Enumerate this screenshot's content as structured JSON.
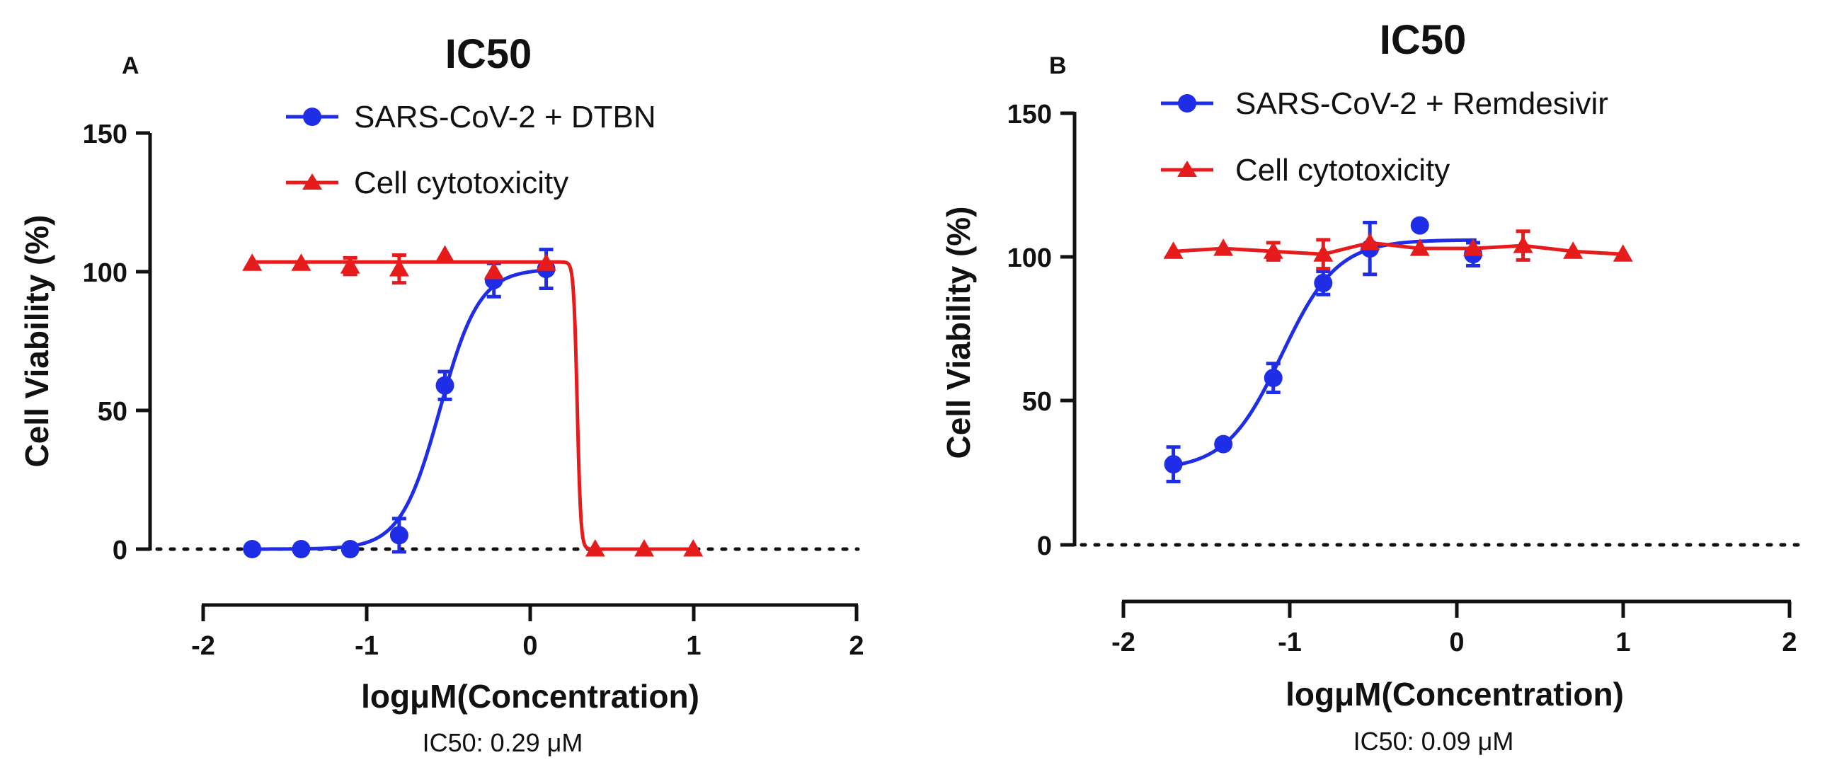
{
  "chart_data": [
    {
      "panel": "A",
      "type": "line",
      "title": "IC50",
      "xlabel": "logμM(Concentration)",
      "ylabel": "Cell Viability (%)",
      "xlim": [
        -2,
        2
      ],
      "ylim": [
        0,
        150
      ],
      "xticks": [
        "-2",
        "-1",
        "0",
        "1",
        "2"
      ],
      "yticks": [
        "0",
        "50",
        "100",
        "150"
      ],
      "baseline": 0,
      "annotation": "IC50: 0.29 μM",
      "legend_position": "top-center",
      "series": [
        {
          "name": "SARS-CoV-2 + DTBN",
          "color": "#1f2ee6",
          "marker": "circle",
          "x": [
            -1.7,
            -1.4,
            -1.1,
            -0.8,
            -0.52,
            -0.22,
            0.1
          ],
          "y": [
            0,
            0,
            0,
            5,
            59,
            97,
            101
          ],
          "err": [
            0,
            0,
            0,
            6,
            5,
            6,
            7
          ],
          "fit": {
            "kind": "sigmoid",
            "bottom": 0,
            "top": 101,
            "x50": -0.55,
            "hill": 3.6,
            "x_start": -1.7,
            "x_end": 0.12
          }
        },
        {
          "name": "Cell cytotoxicity",
          "color": "#e61c1c",
          "marker": "triangle",
          "x": [
            -1.7,
            -1.4,
            -1.1,
            -0.8,
            -0.52,
            -0.22,
            0.1,
            0.4,
            0.7,
            1.0
          ],
          "y": [
            103,
            103,
            102,
            101,
            106,
            100,
            103,
            0,
            0,
            0
          ],
          "err": [
            0,
            0,
            3,
            5,
            0,
            0,
            0,
            0,
            0,
            0
          ],
          "fit": {
            "kind": "sigmoid",
            "bottom": 0,
            "top": 103.5,
            "x50": 0.29,
            "hill": -40,
            "x_start": -1.7,
            "x_end": 1.0
          }
        }
      ]
    },
    {
      "panel": "B",
      "type": "line",
      "title": "IC50",
      "xlabel": "logμM(Concentration)",
      "ylabel": "Cell Viability (%)",
      "xlim": [
        -2,
        2
      ],
      "ylim": [
        0,
        150
      ],
      "xticks": [
        "-2",
        "-1",
        "0",
        "1",
        "2"
      ],
      "yticks": [
        "0",
        "50",
        "100",
        "150"
      ],
      "baseline": 0,
      "annotation": "IC50: 0.09 μM",
      "legend_position": "top-center",
      "series": [
        {
          "name": "SARS-CoV-2 + Remdesivir",
          "color": "#1f2ee6",
          "marker": "circle",
          "x": [
            -1.7,
            -1.4,
            -1.1,
            -0.8,
            -0.52,
            -0.22,
            0.1
          ],
          "y": [
            28,
            35,
            58,
            91,
            103,
            111,
            101
          ],
          "err": [
            6,
            0,
            5,
            4,
            9,
            0,
            4
          ],
          "fit": {
            "kind": "sigmoid",
            "bottom": 26,
            "top": 106,
            "x50": -1.05,
            "hill": 2.6,
            "x_start": -1.7,
            "x_end": 0.12
          }
        },
        {
          "name": "Cell cytotoxicity",
          "color": "#e61c1c",
          "marker": "triangle",
          "x": [
            -1.7,
            -1.4,
            -1.1,
            -0.8,
            -0.52,
            -0.22,
            0.1,
            0.4,
            0.7,
            1.0
          ],
          "y": [
            102,
            103,
            102,
            101,
            105,
            103,
            103,
            104,
            102,
            101
          ],
          "err": [
            0,
            0,
            3,
            5,
            0,
            0,
            0,
            5,
            0,
            0
          ],
          "fit": {
            "kind": "points"
          }
        }
      ]
    }
  ]
}
